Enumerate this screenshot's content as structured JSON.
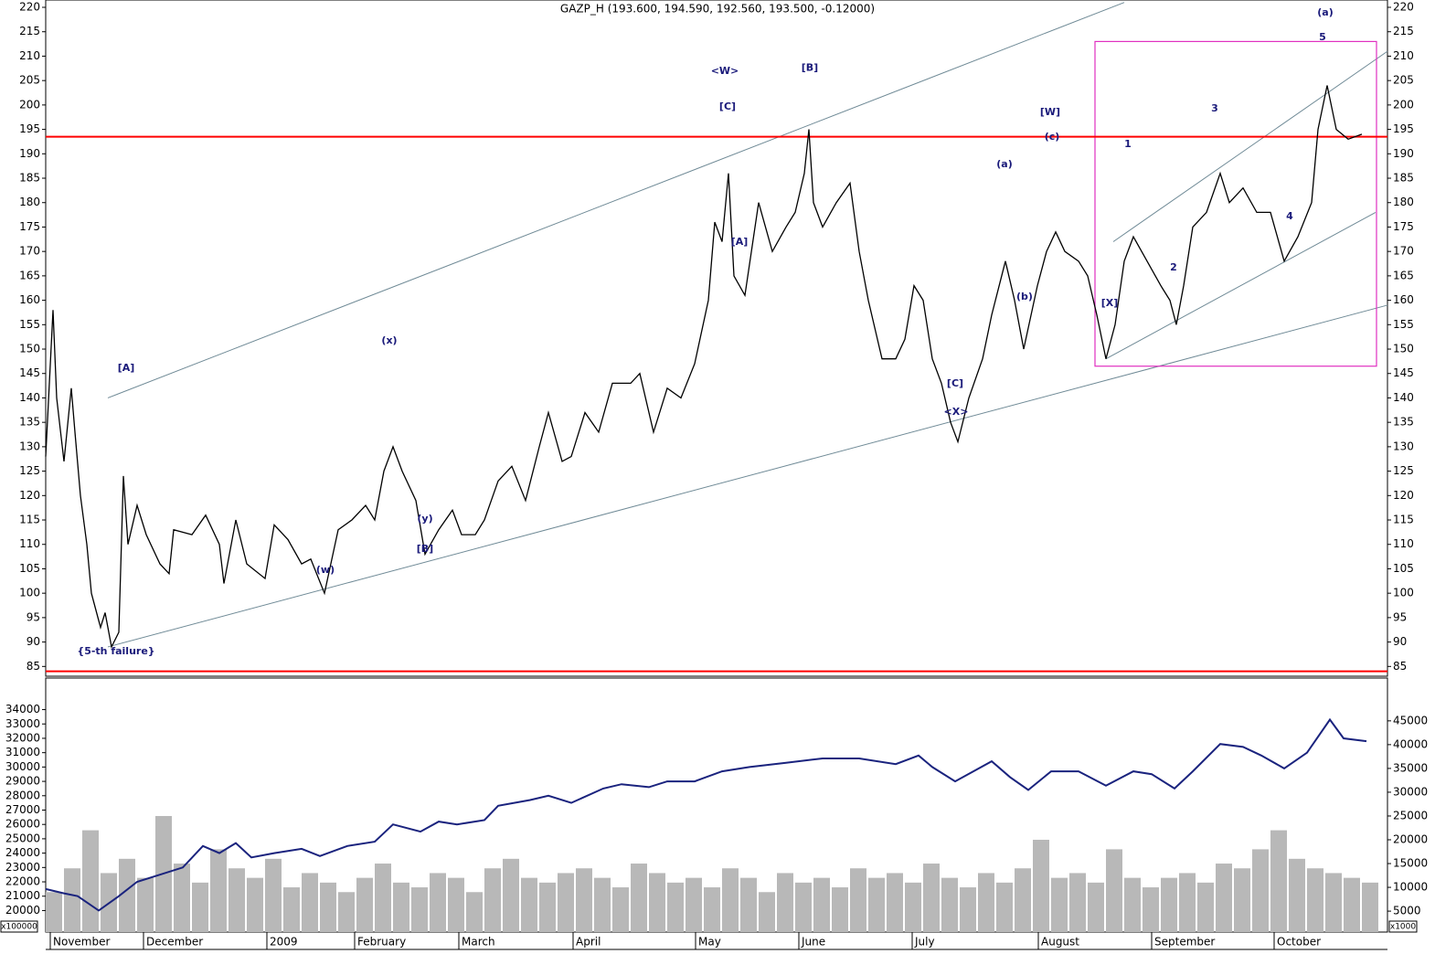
{
  "chart_data": [
    {
      "type": "line",
      "title": "GAZP_H (193.600, 194.590, 192.560, 193.500, -0.12000)",
      "xlim": [
        0,
        293.6
      ],
      "ylim": [
        83,
        221.5
      ],
      "yticks": [
        85,
        90,
        95,
        100,
        105,
        110,
        115,
        120,
        125,
        130,
        135,
        140,
        145,
        150,
        155,
        160,
        165,
        170,
        175,
        180,
        185,
        190,
        195,
        200,
        205,
        210,
        215,
        220
      ],
      "series": [
        {
          "color": "#000000",
          "x": [
            0,
            1.6,
            2.4,
            4,
            5.6,
            6.4,
            7.6,
            9,
            10,
            12,
            13,
            14.4,
            16,
            17,
            18,
            20,
            22,
            25,
            27,
            28,
            32,
            35,
            38,
            39,
            41.6,
            44,
            48,
            50,
            53,
            56,
            58,
            61,
            64,
            67,
            70,
            72,
            74,
            76,
            78,
            81,
            83,
            86,
            89,
            91,
            94,
            96,
            99,
            102,
            105,
            108,
            110,
            113,
            115,
            118,
            121,
            124,
            128,
            130,
            133,
            136,
            139,
            142,
            145,
            146.4,
            148,
            149.4,
            150.6,
            153,
            156,
            159,
            162,
            164,
            166,
            167,
            168,
            170,
            173,
            176,
            178,
            180,
            183,
            186,
            188,
            190,
            192,
            194,
            196,
            198,
            199.6,
            202,
            205,
            207,
            210,
            212,
            214,
            217,
            219,
            221,
            223,
            226,
            228,
            230,
            232,
            234,
            236,
            238,
            241,
            244,
            246,
            247.4,
            249,
            251,
            254,
            257,
            259,
            262,
            265,
            268,
            271,
            274,
            277,
            278.4,
            280.4,
            282.4,
            285,
            288
          ],
          "values": [
            128,
            158,
            140,
            127,
            142,
            133,
            120,
            110,
            100,
            93,
            96,
            89,
            92,
            124,
            110,
            118,
            112,
            106,
            104,
            113,
            112,
            116,
            110,
            102,
            115,
            106,
            103,
            114,
            111,
            106,
            107,
            100,
            113,
            115,
            118,
            115,
            125,
            130,
            125,
            119,
            108,
            113,
            117,
            112,
            112,
            115,
            123,
            126,
            119,
            130,
            137,
            127,
            128,
            137,
            133,
            143,
            143,
            145,
            133,
            142,
            140,
            147,
            160,
            176,
            172,
            186,
            165,
            161,
            180,
            170,
            175,
            178,
            186,
            195,
            180,
            175,
            180,
            184,
            170,
            160,
            148,
            148,
            152,
            163,
            160,
            148,
            143,
            135,
            131,
            140,
            148,
            157,
            168,
            160,
            150,
            163,
            170,
            174,
            170,
            168,
            165,
            157,
            148,
            155,
            168,
            173,
            168,
            163,
            160,
            155,
            163,
            175,
            178,
            186,
            180,
            183,
            178,
            178,
            168,
            173,
            180,
            195,
            204,
            195,
            193,
            194
          ]
        }
      ],
      "hlines": [
        193.5,
        84
      ],
      "hline_color": "#ff0000",
      "trendlines": [
        {
          "x": [
            13.6,
            236
          ],
          "y": [
            140,
            221
          ]
        },
        {
          "x": [
            13.6,
            293.6
          ],
          "y": [
            89,
            159
          ]
        },
        {
          "x": [
            233.6,
            293.6
          ],
          "y": [
            172,
            211
          ]
        },
        {
          "x": [
            232,
            291
          ],
          "y": [
            148,
            178
          ]
        }
      ],
      "trendline_color": "#6f8a96",
      "box": {
        "x": [
          229.6,
          291.2
        ],
        "y": [
          146.5,
          213
        ],
        "color": "#e030c0"
      },
      "annotation_color": "#1a1a7a",
      "annotations": [
        {
          "text": "(a)",
          "x": 280,
          "y": 218.9
        },
        {
          "text": "5",
          "x": 279.4,
          "y": 213.8
        },
        {
          "text": "<W>",
          "x": 148.6,
          "y": 206.9
        },
        {
          "text": "[B]",
          "x": 167.2,
          "y": 207.6
        },
        {
          "text": "[C]",
          "x": 149.2,
          "y": 199.6
        },
        {
          "text": "[W]",
          "x": 219.8,
          "y": 198.5
        },
        {
          "text": "(c)",
          "x": 220.2,
          "y": 193.4
        },
        {
          "text": "3",
          "x": 255.8,
          "y": 199.2
        },
        {
          "text": "1",
          "x": 236.8,
          "y": 191.9
        },
        {
          "text": "(a)",
          "x": 209.8,
          "y": 187.8
        },
        {
          "text": "4",
          "x": 272.2,
          "y": 177.1
        },
        {
          "text": "[A]",
          "x": 151.8,
          "y": 171.9
        },
        {
          "text": "2",
          "x": 246.8,
          "y": 166.7
        },
        {
          "text": "(b)",
          "x": 214.2,
          "y": 160.7
        },
        {
          "text": "[X]",
          "x": 232.8,
          "y": 159.4
        },
        {
          "text": "(x)",
          "x": 75.2,
          "y": 151.7
        },
        {
          "text": "[A]",
          "x": 17.6,
          "y": 146.1
        },
        {
          "text": "[C]",
          "x": 199,
          "y": 142.9
        },
        {
          "text": "<X>",
          "x": 199.2,
          "y": 137.1
        },
        {
          "text": "(y)",
          "x": 83,
          "y": 115.2
        },
        {
          "text": "[B]",
          "x": 83,
          "y": 109
        },
        {
          "text": "(w)",
          "x": 61.2,
          "y": 104.7
        },
        {
          "text": "{5-th failure}",
          "x": 15.4,
          "y": 88.1
        }
      ]
    },
    {
      "type": "bar",
      "xlim": [
        0,
        293.6
      ],
      "ylim": [
        18500,
        36200
      ],
      "yticks": [
        20000,
        21000,
        22000,
        23000,
        24000,
        25000,
        26000,
        27000,
        28000,
        29000,
        30000,
        31000,
        32000,
        33000,
        34000
      ],
      "y2lim": [
        600,
        54000
      ],
      "y2ticks": [
        5000,
        10000,
        15000,
        20000,
        25000,
        30000,
        35000,
        40000,
        45000
      ],
      "y_multiplier": "x100000",
      "y2_multiplier": "x1000",
      "xticks": [
        {
          "value": 1,
          "label": "November"
        },
        {
          "value": 21.4,
          "label": "December"
        },
        {
          "value": 48.4,
          "label": "2009"
        },
        {
          "value": 67.6,
          "label": "February"
        },
        {
          "value": 90.4,
          "label": "March"
        },
        {
          "value": 115.4,
          "label": "April"
        },
        {
          "value": 142.2,
          "label": "May"
        },
        {
          "value": 164.8,
          "label": "June"
        },
        {
          "value": 189.6,
          "label": "July"
        },
        {
          "value": 217.2,
          "label": "August"
        },
        {
          "value": 242,
          "label": "September"
        },
        {
          "value": 268.8,
          "label": "October"
        }
      ],
      "series": [
        {
          "axis": "y2",
          "color": "#b8b8b8",
          "x": [
            0,
            4,
            8,
            12,
            16,
            20,
            24,
            28,
            32,
            36,
            40,
            44,
            48,
            52,
            56,
            60,
            64,
            68,
            72,
            76,
            80,
            84,
            88,
            92,
            96,
            100,
            104,
            108,
            112,
            116,
            120,
            124,
            128,
            132,
            136,
            140,
            144,
            148,
            152,
            156,
            160,
            164,
            168,
            172,
            176,
            180,
            184,
            188,
            192,
            196,
            200,
            204,
            208,
            212,
            216,
            220,
            224,
            228,
            232,
            236,
            240,
            244,
            248,
            252,
            256,
            260,
            264,
            268,
            272,
            276,
            280,
            284,
            288
          ],
          "values": [
            9000,
            14000,
            22000,
            13000,
            16000,
            12000,
            25000,
            15000,
            11000,
            18000,
            14000,
            12000,
            16000,
            10000,
            13000,
            11000,
            9000,
            12000,
            15000,
            11000,
            10000,
            13000,
            12000,
            9000,
            14000,
            16000,
            12000,
            11000,
            13000,
            14000,
            12000,
            10000,
            15000,
            13000,
            11000,
            12000,
            10000,
            14000,
            12000,
            9000,
            13000,
            11000,
            12000,
            10000,
            14000,
            12000,
            13000,
            11000,
            15000,
            12000,
            10000,
            13000,
            11000,
            14000,
            20000,
            12000,
            13000,
            11000,
            18000,
            12000,
            10000,
            12000,
            13000,
            11000,
            15000,
            14000,
            18000,
            22000,
            16000,
            14000,
            13000,
            12000,
            11000
          ]
        },
        {
          "axis": "y",
          "color": "#1a237e",
          "x": [
            0,
            4,
            7,
            11.6,
            16,
            20,
            25,
            30,
            34.4,
            38,
            41.6,
            45,
            50,
            56,
            60,
            66,
            72,
            76,
            82,
            86,
            90,
            96,
            99,
            106,
            110,
            115,
            122,
            126,
            132,
            136,
            142,
            148,
            154,
            162,
            170,
            178,
            186,
            191,
            194,
            199,
            207,
            211,
            215,
            220,
            226,
            232,
            238,
            242,
            247,
            251,
            257,
            262,
            266,
            271,
            276,
            281,
            284,
            289
          ],
          "values": [
            21500,
            21200,
            21000,
            20000,
            21000,
            22000,
            22500,
            23000,
            24500,
            24000,
            24700,
            23700,
            24000,
            24300,
            23800,
            24500,
            24800,
            26000,
            25500,
            26200,
            26000,
            26300,
            27300,
            27700,
            28000,
            27500,
            28500,
            28800,
            28600,
            29000,
            29000,
            29700,
            30000,
            30300,
            30600,
            30600,
            30200,
            30800,
            30000,
            29000,
            30400,
            29300,
            28400,
            29700,
            29700,
            28700,
            29700,
            29500,
            28500,
            29700,
            31600,
            31400,
            30800,
            29900,
            31000,
            33300,
            32000,
            31800
          ]
        }
      ]
    }
  ]
}
